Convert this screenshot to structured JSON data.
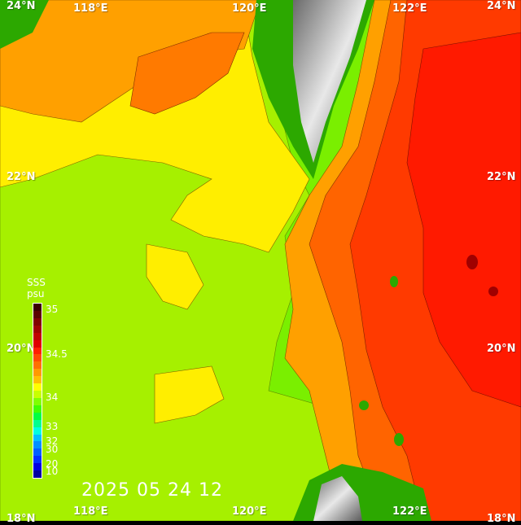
{
  "map": {
    "lon_labels": [
      "118°E",
      "120°E",
      "122°E"
    ],
    "lat_labels": [
      "24°N",
      "22°N",
      "20°N",
      "18°N"
    ],
    "timestamp": "2025 05 24 12"
  },
  "colorbar": {
    "title": "SSS",
    "unit": "psu",
    "ticks": [
      "35",
      "34.5",
      "34",
      "33",
      "32",
      "30",
      "20",
      "10"
    ],
    "colors": [
      "#3a0000",
      "#5a0000",
      "#800000",
      "#a00000",
      "#c00000",
      "#e00000",
      "#ff2000",
      "#ff4a00",
      "#ff7000",
      "#ff9a00",
      "#ffc000",
      "#ffff00",
      "#c8ff00",
      "#80ff00",
      "#40ff00",
      "#00ff40",
      "#00ff90",
      "#00ffe0",
      "#00c0ff",
      "#0090ff",
      "#0060ff",
      "#0030ff",
      "#0000e0",
      "#0000a0"
    ]
  },
  "palette": {
    "high_salinity": "#ff1a00",
    "mid_high": "#ff6400",
    "mid": "#ffa000",
    "low_mid": "#ffee00",
    "low": "#b8f000",
    "lowest": "#7aef00",
    "land_green": "#2ca800",
    "mountain_gray": "#7a7a7a"
  }
}
